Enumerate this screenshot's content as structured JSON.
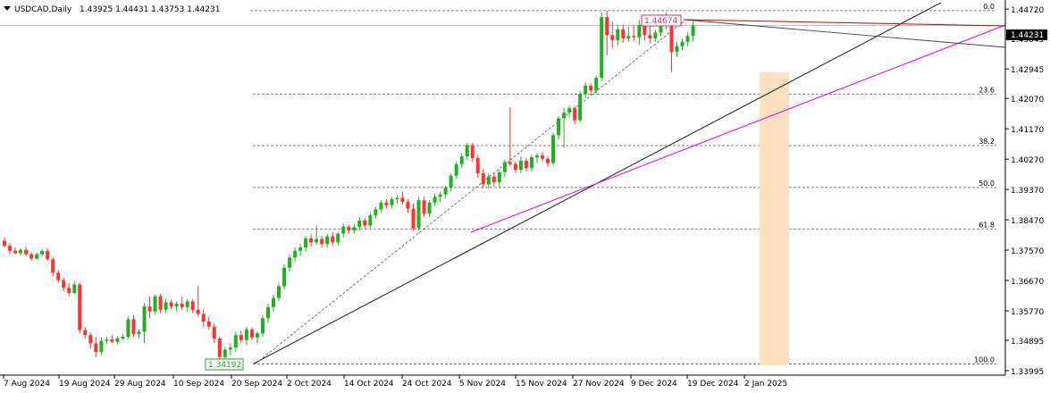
{
  "header": {
    "symbol": "USDCAD,Daily",
    "ohlc": "1.43925 1.44431 1.43753 1.44231"
  },
  "chart_data": {
    "type": "candlestick",
    "symbol": "USDCAD",
    "timeframe": "Daily",
    "last_price": "1.44231",
    "ylim": [
      1.33995,
      1.4483
    ],
    "y_ticks": [
      "1.44720",
      "1.43845",
      "1.42945",
      "1.42070",
      "1.41170",
      "1.40270",
      "1.39370",
      "1.38470",
      "1.37570",
      "1.36670",
      "1.35770",
      "1.34895",
      "1.33995"
    ],
    "x_ticks": [
      "7 Aug 2024",
      "19 Aug 2024",
      "29 Aug 2024",
      "10 Sep 2024",
      "20 Sep 2024",
      "2 Oct 2024",
      "14 Oct 2024",
      "24 Oct 2024",
      "5 Nov 2024",
      "15 Nov 2024",
      "27 Nov 2024",
      "9 Dec 2024",
      "19 Dec 2024",
      "2 Jan 2025"
    ],
    "swing_low_label": "1.34192",
    "swing_high_label": "1.44674",
    "fibonacci": [
      {
        "label": "0.0",
        "price": 1.44674
      },
      {
        "label": "23.6",
        "price": 1.422
      },
      {
        "label": "38.2",
        "price": 1.4067
      },
      {
        "label": "50.0",
        "price": 1.3943
      },
      {
        "label": "61.8",
        "price": 1.382
      },
      {
        "label": "100.0",
        "price": 1.34192
      }
    ],
    "colors": {
      "bull": "#20b020",
      "bear": "#ff3030",
      "fib": "#555555",
      "trend": "#000000",
      "magenta": "#e000e0",
      "red_line": "#d00000",
      "zone": "#fde0c0",
      "price_line": "#9ab0b8"
    },
    "candles": [
      {
        "o": 1.3785,
        "h": 1.3795,
        "l": 1.3765,
        "c": 1.377
      },
      {
        "o": 1.377,
        "h": 1.3778,
        "l": 1.3745,
        "c": 1.3755
      },
      {
        "o": 1.3755,
        "h": 1.3765,
        "l": 1.3745,
        "c": 1.3748
      },
      {
        "o": 1.3748,
        "h": 1.3762,
        "l": 1.374,
        "c": 1.3758
      },
      {
        "o": 1.3758,
        "h": 1.3768,
        "l": 1.374,
        "c": 1.3745
      },
      {
        "o": 1.3745,
        "h": 1.3752,
        "l": 1.3725,
        "c": 1.3732
      },
      {
        "o": 1.3732,
        "h": 1.375,
        "l": 1.3728,
        "c": 1.3745
      },
      {
        "o": 1.3745,
        "h": 1.376,
        "l": 1.3738,
        "c": 1.3755
      },
      {
        "o": 1.3755,
        "h": 1.3762,
        "l": 1.3725,
        "c": 1.373
      },
      {
        "o": 1.373,
        "h": 1.3738,
        "l": 1.368,
        "c": 1.369
      },
      {
        "o": 1.369,
        "h": 1.3698,
        "l": 1.366,
        "c": 1.3668
      },
      {
        "o": 1.3668,
        "h": 1.3675,
        "l": 1.3635,
        "c": 1.3645
      },
      {
        "o": 1.3645,
        "h": 1.366,
        "l": 1.362,
        "c": 1.363
      },
      {
        "o": 1.363,
        "h": 1.3665,
        "l": 1.3625,
        "c": 1.3655
      },
      {
        "o": 1.3655,
        "h": 1.366,
        "l": 1.351,
        "c": 1.352
      },
      {
        "o": 1.352,
        "h": 1.353,
        "l": 1.3495,
        "c": 1.3505
      },
      {
        "o": 1.3505,
        "h": 1.3512,
        "l": 1.3465,
        "c": 1.348
      },
      {
        "o": 1.348,
        "h": 1.35,
        "l": 1.344,
        "c": 1.3455
      },
      {
        "o": 1.3455,
        "h": 1.3498,
        "l": 1.3445,
        "c": 1.3488
      },
      {
        "o": 1.3488,
        "h": 1.35,
        "l": 1.3478,
        "c": 1.3492
      },
      {
        "o": 1.3492,
        "h": 1.3505,
        "l": 1.348,
        "c": 1.3485
      },
      {
        "o": 1.3485,
        "h": 1.3502,
        "l": 1.3478,
        "c": 1.3495
      },
      {
        "o": 1.3495,
        "h": 1.3508,
        "l": 1.349,
        "c": 1.35
      },
      {
        "o": 1.35,
        "h": 1.356,
        "l": 1.3495,
        "c": 1.3552
      },
      {
        "o": 1.3552,
        "h": 1.3565,
        "l": 1.35,
        "c": 1.3508
      },
      {
        "o": 1.3508,
        "h": 1.3522,
        "l": 1.3495,
        "c": 1.3515
      },
      {
        "o": 1.3515,
        "h": 1.36,
        "l": 1.348,
        "c": 1.359
      },
      {
        "o": 1.359,
        "h": 1.362,
        "l": 1.3555,
        "c": 1.3575
      },
      {
        "o": 1.3575,
        "h": 1.3625,
        "l": 1.3565,
        "c": 1.362
      },
      {
        "o": 1.362,
        "h": 1.3628,
        "l": 1.357,
        "c": 1.358
      },
      {
        "o": 1.358,
        "h": 1.3612,
        "l": 1.357,
        "c": 1.3602
      },
      {
        "o": 1.3602,
        "h": 1.361,
        "l": 1.3582,
        "c": 1.359
      },
      {
        "o": 1.359,
        "h": 1.3605,
        "l": 1.3575,
        "c": 1.3598
      },
      {
        "o": 1.3598,
        "h": 1.362,
        "l": 1.358,
        "c": 1.3588
      },
      {
        "o": 1.3588,
        "h": 1.3612,
        "l": 1.3575,
        "c": 1.3605
      },
      {
        "o": 1.3605,
        "h": 1.3612,
        "l": 1.357,
        "c": 1.358
      },
      {
        "o": 1.358,
        "h": 1.365,
        "l": 1.356,
        "c": 1.3568
      },
      {
        "o": 1.3568,
        "h": 1.358,
        "l": 1.353,
        "c": 1.3545
      },
      {
        "o": 1.3545,
        "h": 1.3558,
        "l": 1.352,
        "c": 1.353
      },
      {
        "o": 1.353,
        "h": 1.354,
        "l": 1.348,
        "c": 1.3495
      },
      {
        "o": 1.3495,
        "h": 1.35,
        "l": 1.3425,
        "c": 1.344
      },
      {
        "o": 1.344,
        "h": 1.347,
        "l": 1.3419,
        "c": 1.3462
      },
      {
        "o": 1.3462,
        "h": 1.348,
        "l": 1.3445,
        "c": 1.3468
      },
      {
        "o": 1.3468,
        "h": 1.3515,
        "l": 1.3455,
        "c": 1.3505
      },
      {
        "o": 1.3505,
        "h": 1.3518,
        "l": 1.348,
        "c": 1.349
      },
      {
        "o": 1.349,
        "h": 1.353,
        "l": 1.3475,
        "c": 1.3522
      },
      {
        "o": 1.3522,
        "h": 1.3528,
        "l": 1.349,
        "c": 1.3498
      },
      {
        "o": 1.3498,
        "h": 1.3515,
        "l": 1.348,
        "c": 1.351
      },
      {
        "o": 1.351,
        "h": 1.3565,
        "l": 1.35,
        "c": 1.3555
      },
      {
        "o": 1.3555,
        "h": 1.3598,
        "l": 1.354,
        "c": 1.3588
      },
      {
        "o": 1.3588,
        "h": 1.3625,
        "l": 1.3575,
        "c": 1.3615
      },
      {
        "o": 1.3615,
        "h": 1.366,
        "l": 1.3605,
        "c": 1.365
      },
      {
        "o": 1.365,
        "h": 1.3715,
        "l": 1.364,
        "c": 1.3705
      },
      {
        "o": 1.3705,
        "h": 1.3745,
        "l": 1.3692,
        "c": 1.3735
      },
      {
        "o": 1.3735,
        "h": 1.3765,
        "l": 1.3722,
        "c": 1.3755
      },
      {
        "o": 1.3755,
        "h": 1.3775,
        "l": 1.374,
        "c": 1.3765
      },
      {
        "o": 1.3765,
        "h": 1.38,
        "l": 1.3752,
        "c": 1.3792
      },
      {
        "o": 1.3792,
        "h": 1.3805,
        "l": 1.3768,
        "c": 1.378
      },
      {
        "o": 1.378,
        "h": 1.383,
        "l": 1.3772,
        "c": 1.379
      },
      {
        "o": 1.379,
        "h": 1.38,
        "l": 1.3765,
        "c": 1.3775
      },
      {
        "o": 1.3775,
        "h": 1.3805,
        "l": 1.3765,
        "c": 1.3798
      },
      {
        "o": 1.3798,
        "h": 1.381,
        "l": 1.377,
        "c": 1.378
      },
      {
        "o": 1.378,
        "h": 1.3812,
        "l": 1.3772,
        "c": 1.3806
      },
      {
        "o": 1.3806,
        "h": 1.3835,
        "l": 1.3795,
        "c": 1.3826
      },
      {
        "o": 1.3826,
        "h": 1.3832,
        "l": 1.3805,
        "c": 1.3815
      },
      {
        "o": 1.3815,
        "h": 1.3835,
        "l": 1.3805,
        "c": 1.3825
      },
      {
        "o": 1.3825,
        "h": 1.3855,
        "l": 1.3815,
        "c": 1.3845
      },
      {
        "o": 1.3845,
        "h": 1.3852,
        "l": 1.382,
        "c": 1.383
      },
      {
        "o": 1.383,
        "h": 1.3868,
        "l": 1.3822,
        "c": 1.386
      },
      {
        "o": 1.386,
        "h": 1.3885,
        "l": 1.385,
        "c": 1.3878
      },
      {
        "o": 1.3878,
        "h": 1.3905,
        "l": 1.3868,
        "c": 1.3898
      },
      {
        "o": 1.3898,
        "h": 1.3908,
        "l": 1.388,
        "c": 1.389
      },
      {
        "o": 1.389,
        "h": 1.3915,
        "l": 1.388,
        "c": 1.3908
      },
      {
        "o": 1.3908,
        "h": 1.392,
        "l": 1.3895,
        "c": 1.3912
      },
      {
        "o": 1.3912,
        "h": 1.393,
        "l": 1.3892,
        "c": 1.39
      },
      {
        "o": 1.39,
        "h": 1.3908,
        "l": 1.3868,
        "c": 1.388
      },
      {
        "o": 1.388,
        "h": 1.3895,
        "l": 1.3815,
        "c": 1.3822
      },
      {
        "o": 1.3822,
        "h": 1.3915,
        "l": 1.3815,
        "c": 1.3905
      },
      {
        "o": 1.3905,
        "h": 1.3915,
        "l": 1.3855,
        "c": 1.3865
      },
      {
        "o": 1.3865,
        "h": 1.3905,
        "l": 1.3855,
        "c": 1.3898
      },
      {
        "o": 1.3898,
        "h": 1.3925,
        "l": 1.3888,
        "c": 1.3915
      },
      {
        "o": 1.3915,
        "h": 1.393,
        "l": 1.39,
        "c": 1.3922
      },
      {
        "o": 1.3922,
        "h": 1.3948,
        "l": 1.391,
        "c": 1.3942
      },
      {
        "o": 1.3942,
        "h": 1.3985,
        "l": 1.3932,
        "c": 1.3978
      },
      {
        "o": 1.3978,
        "h": 1.402,
        "l": 1.3968,
        "c": 1.4012
      },
      {
        "o": 1.4012,
        "h": 1.4045,
        "l": 1.4,
        "c": 1.4035
      },
      {
        "o": 1.4035,
        "h": 1.4075,
        "l": 1.4025,
        "c": 1.4068
      },
      {
        "o": 1.4068,
        "h": 1.4075,
        "l": 1.4018,
        "c": 1.403
      },
      {
        "o": 1.403,
        "h": 1.404,
        "l": 1.3972,
        "c": 1.3985
      },
      {
        "o": 1.3985,
        "h": 1.3998,
        "l": 1.394,
        "c": 1.3952
      },
      {
        "o": 1.3952,
        "h": 1.3985,
        "l": 1.394,
        "c": 1.3975
      },
      {
        "o": 1.3975,
        "h": 1.3985,
        "l": 1.3945,
        "c": 1.3958
      },
      {
        "o": 1.3958,
        "h": 1.3995,
        "l": 1.3945,
        "c": 1.3988
      },
      {
        "o": 1.3988,
        "h": 1.4025,
        "l": 1.3975,
        "c": 1.4018
      },
      {
        "o": 1.4018,
        "h": 1.418,
        "l": 1.4005,
        "c": 1.4012
      },
      {
        "o": 1.4012,
        "h": 1.402,
        "l": 1.3985,
        "c": 1.3995
      },
      {
        "o": 1.3995,
        "h": 1.4035,
        "l": 1.3985,
        "c": 1.4022
      },
      {
        "o": 1.4022,
        "h": 1.403,
        "l": 1.399,
        "c": 1.4
      },
      {
        "o": 1.4,
        "h": 1.404,
        "l": 1.399,
        "c": 1.4032
      },
      {
        "o": 1.4032,
        "h": 1.4045,
        "l": 1.4015,
        "c": 1.4038
      },
      {
        "o": 1.4038,
        "h": 1.4048,
        "l": 1.402,
        "c": 1.4028
      },
      {
        "o": 1.4028,
        "h": 1.4035,
        "l": 1.4005,
        "c": 1.4015
      },
      {
        "o": 1.4015,
        "h": 1.4105,
        "l": 1.4008,
        "c": 1.4098
      },
      {
        "o": 1.4098,
        "h": 1.4155,
        "l": 1.4085,
        "c": 1.4148
      },
      {
        "o": 1.4148,
        "h": 1.4178,
        "l": 1.406,
        "c": 1.4165
      },
      {
        "o": 1.4165,
        "h": 1.4185,
        "l": 1.415,
        "c": 1.4178
      },
      {
        "o": 1.4178,
        "h": 1.4185,
        "l": 1.413,
        "c": 1.4142
      },
      {
        "o": 1.4142,
        "h": 1.4228,
        "l": 1.4135,
        "c": 1.422
      },
      {
        "o": 1.422,
        "h": 1.4255,
        "l": 1.4208,
        "c": 1.4245
      },
      {
        "o": 1.4245,
        "h": 1.4252,
        "l": 1.4218,
        "c": 1.423
      },
      {
        "o": 1.423,
        "h": 1.4275,
        "l": 1.422,
        "c": 1.4268
      },
      {
        "o": 1.4268,
        "h": 1.4462,
        "l": 1.4258,
        "c": 1.4448
      },
      {
        "o": 1.4448,
        "h": 1.4467,
        "l": 1.4335,
        "c": 1.4395
      },
      {
        "o": 1.4395,
        "h": 1.4435,
        "l": 1.4355,
        "c": 1.438
      },
      {
        "o": 1.438,
        "h": 1.4425,
        "l": 1.4362,
        "c": 1.4412
      },
      {
        "o": 1.4412,
        "h": 1.4425,
        "l": 1.4372,
        "c": 1.4385
      },
      {
        "o": 1.4385,
        "h": 1.442,
        "l": 1.4375,
        "c": 1.4392
      },
      {
        "o": 1.4392,
        "h": 1.4425,
        "l": 1.4378,
        "c": 1.4388
      },
      {
        "o": 1.4388,
        "h": 1.444,
        "l": 1.4365,
        "c": 1.4425
      },
      {
        "o": 1.4425,
        "h": 1.4432,
        "l": 1.4378,
        "c": 1.4395
      },
      {
        "o": 1.4395,
        "h": 1.4428,
        "l": 1.437,
        "c": 1.4385
      },
      {
        "o": 1.4385,
        "h": 1.441,
        "l": 1.4375,
        "c": 1.4402
      },
      {
        "o": 1.4402,
        "h": 1.4448,
        "l": 1.4392,
        "c": 1.444
      },
      {
        "o": 1.444,
        "h": 1.4462,
        "l": 1.4412,
        "c": 1.4428
      },
      {
        "o": 1.4428,
        "h": 1.4438,
        "l": 1.4285,
        "c": 1.4345
      },
      {
        "o": 1.4345,
        "h": 1.4375,
        "l": 1.433,
        "c": 1.4362
      },
      {
        "o": 1.4362,
        "h": 1.4385,
        "l": 1.435,
        "c": 1.4375
      },
      {
        "o": 1.4375,
        "h": 1.4402,
        "l": 1.4362,
        "c": 1.4392
      },
      {
        "o": 1.4392,
        "h": 1.4443,
        "l": 1.4375,
        "c": 1.4423
      }
    ]
  }
}
